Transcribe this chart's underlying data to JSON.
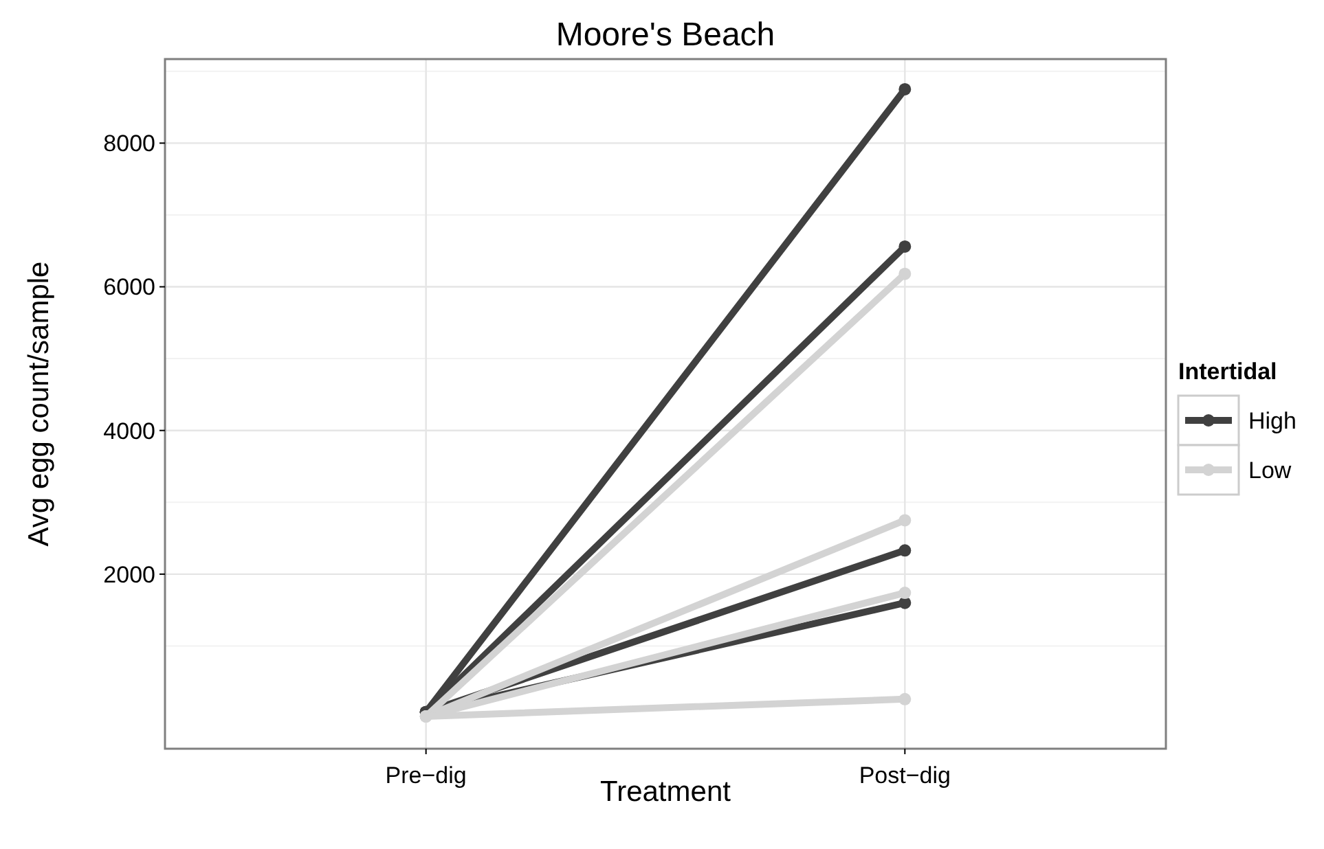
{
  "chart_data": {
    "type": "line",
    "title": "Moore's Beach",
    "xlabel": "Treatment",
    "ylabel": "Avg egg count/sample",
    "legend_title": "Intertidal",
    "categories": [
      "Pre−dig",
      "Post−dig"
    ],
    "series": [
      {
        "name": "High",
        "color": "#404040",
        "values": [
          80,
          8750
        ]
      },
      {
        "color": "#404040",
        "values": [
          80,
          6560
        ]
      },
      {
        "color": "#404040",
        "values": [
          80,
          2330
        ]
      },
      {
        "color": "#404040",
        "values": [
          80,
          1600
        ]
      },
      {
        "name": "Low",
        "color": "#d3d3d3",
        "values": [
          20,
          6180
        ]
      },
      {
        "color": "#d3d3d3",
        "values": [
          20,
          2750
        ]
      },
      {
        "color": "#d3d3d3",
        "values": [
          20,
          1740
        ]
      },
      {
        "color": "#d3d3d3",
        "values": [
          20,
          260
        ]
      }
    ],
    "ylim": [
      -430,
      9170
    ],
    "yticks": [
      2000,
      4000,
      6000,
      8000
    ],
    "grid": true,
    "legend": "right",
    "marker": "circle",
    "line_style": "solid"
  }
}
